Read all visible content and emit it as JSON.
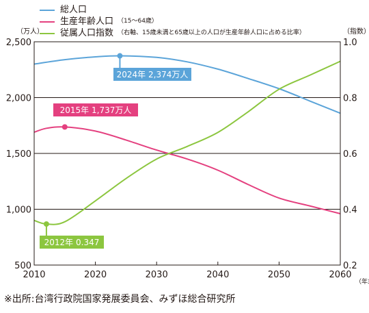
{
  "legend": {
    "total_label": "総人口",
    "working_label": "生産年齢人口",
    "working_note": "（15～64歳）",
    "dependency_label": "従属人口指数",
    "dependency_note": "（右軸、15歳未満と65歳以上の人口が生産年齢人口に占める比率）"
  },
  "source": "※出所:台湾行政院国家発展委員会、みずほ総合研究所",
  "colors": {
    "total": "#5ba4d9",
    "working": "#e4407f",
    "dependency": "#8cc63f"
  },
  "chart_data": {
    "type": "line",
    "left_axis_unit": "（万人）",
    "right_axis_unit": "（指数）",
    "x_unit": "（年末）",
    "xlim": [
      2010,
      2060
    ],
    "x_ticks": [
      "2010",
      "2020",
      "2030",
      "2040",
      "2050",
      "2060"
    ],
    "ylim_left": [
      500,
      2500
    ],
    "y_ticks_left": [
      "500",
      "1,000",
      "1,500",
      "2,000",
      "2,500"
    ],
    "ylim_right": [
      0.2,
      1.0
    ],
    "y_ticks_right": [
      "0.2",
      "0.4",
      "0.6",
      "0.8",
      "1.0"
    ],
    "grid": "horizontal",
    "series": [
      {
        "name": "総人口",
        "axis": "left",
        "color": "#5ba4d9",
        "x": [
          2010,
          2015,
          2020,
          2024,
          2030,
          2035,
          2040,
          2045,
          2050,
          2055,
          2060
        ],
        "y": [
          2300,
          2340,
          2365,
          2374,
          2360,
          2320,
          2255,
          2170,
          2080,
          1970,
          1860
        ]
      },
      {
        "name": "生産年齢人口",
        "axis": "left",
        "color": "#e4407f",
        "x": [
          2010,
          2012,
          2015,
          2020,
          2025,
          2030,
          2035,
          2040,
          2045,
          2050,
          2055,
          2060
        ],
        "y": [
          1690,
          1725,
          1737,
          1700,
          1620,
          1530,
          1450,
          1350,
          1220,
          1100,
          1030,
          960
        ]
      },
      {
        "name": "従属人口指数",
        "axis": "right",
        "color": "#8cc63f",
        "x": [
          2010,
          2012,
          2015,
          2020,
          2025,
          2030,
          2035,
          2040,
          2045,
          2050,
          2055,
          2060
        ],
        "y": [
          0.36,
          0.347,
          0.355,
          0.43,
          0.51,
          0.58,
          0.625,
          0.675,
          0.75,
          0.83,
          0.88,
          0.93
        ]
      }
    ],
    "annotations": [
      {
        "text": "2024年 2,374万人",
        "series": 0,
        "x": 2024,
        "y": 2374
      },
      {
        "text": "2015年 1,737万人",
        "series": 1,
        "x": 2015,
        "y": 1737
      },
      {
        "text": "2012年 0.347",
        "series": 2,
        "x": 2012,
        "y": 0.347
      }
    ]
  }
}
